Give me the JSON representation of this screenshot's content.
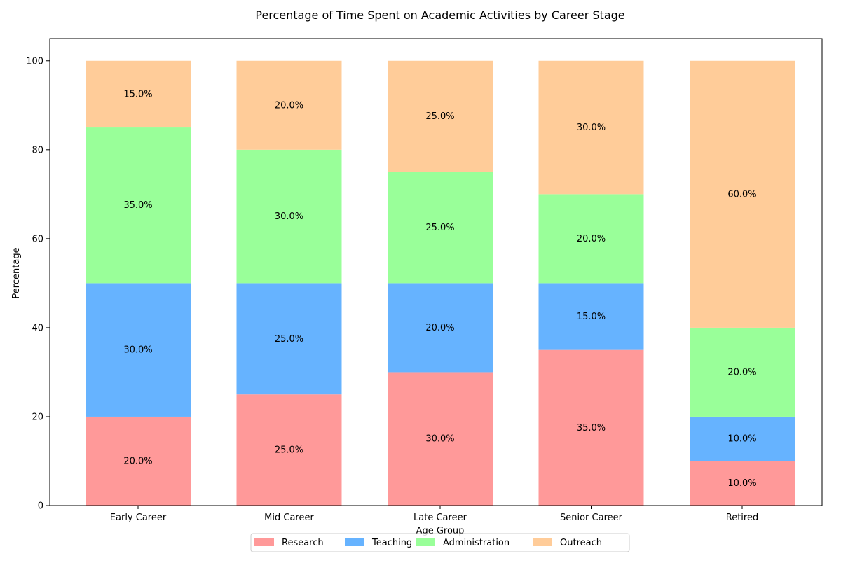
{
  "chart_data": {
    "type": "bar",
    "stacked": true,
    "title": "Percentage of Time Spent on Academic Activities by Career Stage",
    "xlabel": "Age Group",
    "ylabel": "Percentage",
    "ylim": [
      0,
      105
    ],
    "yticks": [
      0,
      20,
      40,
      60,
      80,
      100
    ],
    "categories": [
      "Early Career",
      "Mid Career",
      "Late Career",
      "Senior Career",
      "Retired"
    ],
    "series": [
      {
        "name": "Research",
        "color": "#ff9999",
        "values": [
          20,
          25,
          30,
          35,
          10
        ]
      },
      {
        "name": "Teaching",
        "color": "#66b3ff",
        "values": [
          30,
          25,
          20,
          15,
          10
        ]
      },
      {
        "name": "Administration",
        "color": "#99ff99",
        "values": [
          35,
          30,
          25,
          20,
          20
        ]
      },
      {
        "name": "Outreach",
        "color": "#ffcc99",
        "values": [
          15,
          20,
          25,
          30,
          60
        ]
      }
    ],
    "data_labels": [
      [
        "20.0%",
        "25.0%",
        "30.0%",
        "35.0%",
        "10.0%"
      ],
      [
        "30.0%",
        "25.0%",
        "20.0%",
        "15.0%",
        "10.0%"
      ],
      [
        "35.0%",
        "30.0%",
        "25.0%",
        "20.0%",
        "20.0%"
      ],
      [
        "15.0%",
        "20.0%",
        "25.0%",
        "30.0%",
        "60.0%"
      ]
    ],
    "legend_position": "bottom-center",
    "grid": false
  }
}
